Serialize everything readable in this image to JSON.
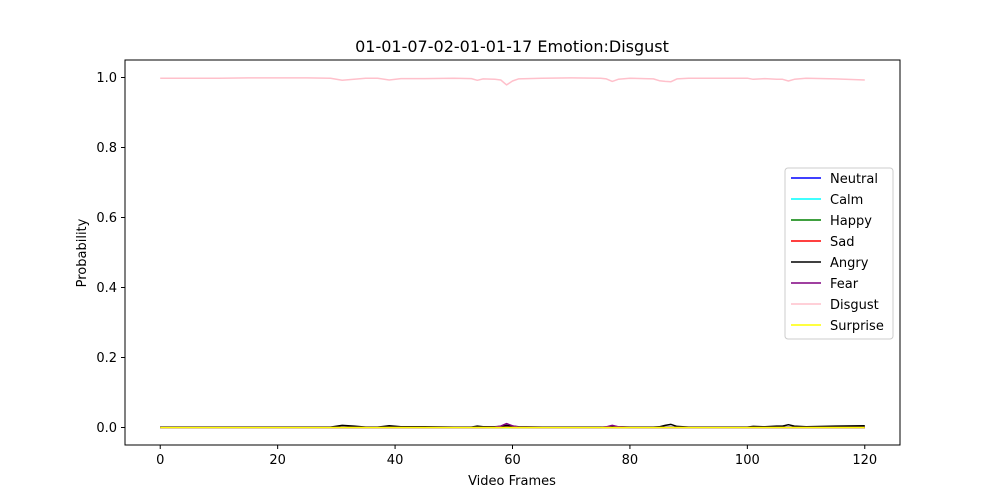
{
  "chart_data": {
    "type": "line",
    "title": "01-01-07-02-01-01-17 Emotion:Disgust",
    "xlabel": "Video Frames",
    "ylabel": "Probability",
    "xlim": [
      -6,
      126
    ],
    "ylim": [
      -0.05,
      1.05
    ],
    "xticks": [
      0,
      20,
      40,
      60,
      80,
      100,
      120
    ],
    "xtick_labels": [
      "0",
      "20",
      "40",
      "60",
      "80",
      "100",
      "120"
    ],
    "yticks": [
      0.0,
      0.2,
      0.4,
      0.6,
      0.8,
      1.0
    ],
    "ytick_labels": [
      "0.0",
      "0.2",
      "0.4",
      "0.6",
      "0.8",
      "1.0"
    ],
    "grid": false,
    "legend_position": "center-right",
    "x": [
      0,
      5,
      10,
      15,
      20,
      25,
      29,
      31,
      33,
      35,
      37,
      39,
      41,
      45,
      50,
      53,
      54,
      55,
      57,
      58,
      59,
      60,
      61,
      65,
      70,
      75,
      76,
      77,
      78,
      80,
      84,
      85,
      86,
      87,
      88,
      90,
      95,
      100,
      101,
      103,
      105,
      106,
      107,
      108,
      110,
      115,
      120
    ],
    "series": [
      {
        "name": "Neutral",
        "color": "#0000ff",
        "values": [
          0.001,
          0.001,
          0.001,
          0.001,
          0.001,
          0.001,
          0.001,
          0.001,
          0.001,
          0.001,
          0.001,
          0.001,
          0.001,
          0.001,
          0.001,
          0.001,
          0.001,
          0.001,
          0.001,
          0.001,
          0.002,
          0.001,
          0.001,
          0.001,
          0.001,
          0.001,
          0.001,
          0.001,
          0.001,
          0.001,
          0.001,
          0.001,
          0.001,
          0.001,
          0.001,
          0.001,
          0.001,
          0.001,
          0.001,
          0.001,
          0.001,
          0.001,
          0.001,
          0.001,
          0.001,
          0.001,
          0.001
        ]
      },
      {
        "name": "Calm",
        "color": "#00ffff",
        "values": [
          0.0,
          0.0,
          0.0,
          0.0,
          0.0,
          0.0,
          0.0,
          0.0,
          0.0,
          0.0,
          0.0,
          0.0,
          0.0,
          0.0,
          0.0,
          0.0,
          0.0,
          0.0,
          0.0,
          0.0,
          0.0,
          0.0,
          0.0,
          0.0,
          0.0,
          0.0,
          0.0,
          0.0,
          0.0,
          0.0,
          0.0,
          0.0,
          0.0,
          0.0,
          0.0,
          0.0,
          0.0,
          0.0,
          0.0,
          0.0,
          0.0,
          0.0,
          0.0,
          0.0,
          0.0,
          0.0,
          0.0
        ]
      },
      {
        "name": "Happy",
        "color": "#008000",
        "values": [
          0.0,
          0.0,
          0.0,
          0.0,
          0.0,
          0.0,
          0.0,
          0.0,
          0.0,
          0.0,
          0.0,
          0.0,
          0.0,
          0.0,
          0.0,
          0.0,
          0.0,
          0.0,
          0.0,
          0.0,
          0.0,
          0.0,
          0.0,
          0.0,
          0.0,
          0.0,
          0.0,
          0.0,
          0.0,
          0.0,
          0.0,
          0.0,
          0.0,
          0.0,
          0.0,
          0.0,
          0.0,
          0.0,
          0.0,
          0.0,
          0.0,
          0.0,
          0.0,
          0.0,
          0.0,
          0.0,
          0.0
        ]
      },
      {
        "name": "Sad",
        "color": "#ff0000",
        "values": [
          0.0,
          0.0,
          0.0,
          0.0,
          0.0,
          0.0,
          0.0,
          0.0,
          0.0,
          0.0,
          0.0,
          0.0,
          0.0,
          0.0,
          0.0,
          0.0,
          0.0,
          0.0,
          0.0,
          0.0,
          0.001,
          0.0,
          0.0,
          0.0,
          0.0,
          0.0,
          0.0,
          0.0,
          0.0,
          0.0,
          0.0,
          0.0,
          0.0,
          0.0,
          0.0,
          0.0,
          0.0,
          0.0,
          0.0,
          0.0,
          0.0,
          0.0,
          0.0,
          0.0,
          0.0,
          0.0,
          0.0
        ]
      },
      {
        "name": "Angry",
        "color": "#000000",
        "values": [
          0.001,
          0.001,
          0.001,
          0.001,
          0.001,
          0.001,
          0.001,
          0.006,
          0.004,
          0.001,
          0.001,
          0.005,
          0.002,
          0.002,
          0.001,
          0.001,
          0.004,
          0.002,
          0.002,
          0.003,
          0.006,
          0.004,
          0.002,
          0.001,
          0.001,
          0.001,
          0.001,
          0.003,
          0.002,
          0.001,
          0.001,
          0.002,
          0.006,
          0.009,
          0.003,
          0.001,
          0.001,
          0.001,
          0.003,
          0.002,
          0.004,
          0.004,
          0.008,
          0.004,
          0.002,
          0.004,
          0.005
        ]
      },
      {
        "name": "Fear",
        "color": "#800080",
        "values": [
          0.0,
          0.0,
          0.0,
          0.0,
          0.0,
          0.0,
          0.0,
          0.0,
          0.0,
          0.0,
          0.0,
          0.0,
          0.0,
          0.0,
          0.0,
          0.0,
          0.0,
          0.0,
          0.001,
          0.004,
          0.011,
          0.005,
          0.001,
          0.0,
          0.0,
          0.0,
          0.002,
          0.006,
          0.002,
          0.0,
          0.0,
          0.0,
          0.0,
          0.0,
          0.0,
          0.0,
          0.0,
          0.0,
          0.0,
          0.0,
          0.0,
          0.0,
          0.0,
          0.0,
          0.0,
          0.0,
          0.0
        ]
      },
      {
        "name": "Disgust",
        "color": "#ffc0cb",
        "values": [
          0.998,
          0.998,
          0.998,
          0.999,
          0.999,
          0.999,
          0.998,
          0.992,
          0.995,
          0.998,
          0.998,
          0.993,
          0.997,
          0.997,
          0.998,
          0.997,
          0.992,
          0.996,
          0.995,
          0.993,
          0.979,
          0.99,
          0.996,
          0.998,
          0.999,
          0.998,
          0.996,
          0.989,
          0.995,
          0.998,
          0.996,
          0.991,
          0.989,
          0.988,
          0.996,
          0.998,
          0.998,
          0.998,
          0.995,
          0.997,
          0.995,
          0.995,
          0.99,
          0.995,
          0.998,
          0.996,
          0.993
        ]
      },
      {
        "name": "Surprise",
        "color": "#ffff00",
        "values": [
          0.0,
          0.0,
          0.0,
          0.0,
          0.0,
          0.0,
          0.0,
          0.0,
          0.0,
          0.0,
          0.0,
          0.0,
          0.0,
          0.0,
          0.0,
          0.0,
          0.0,
          0.0,
          0.0,
          0.0,
          0.0,
          0.0,
          0.0,
          0.0,
          0.0,
          0.0,
          0.0,
          0.0,
          0.0,
          0.0,
          0.0,
          0.0,
          0.0,
          0.0,
          0.0,
          0.0,
          0.0,
          0.0,
          0.0,
          0.0,
          0.0,
          0.0,
          0.0,
          0.0,
          0.0,
          0.0,
          0.0
        ]
      }
    ]
  }
}
